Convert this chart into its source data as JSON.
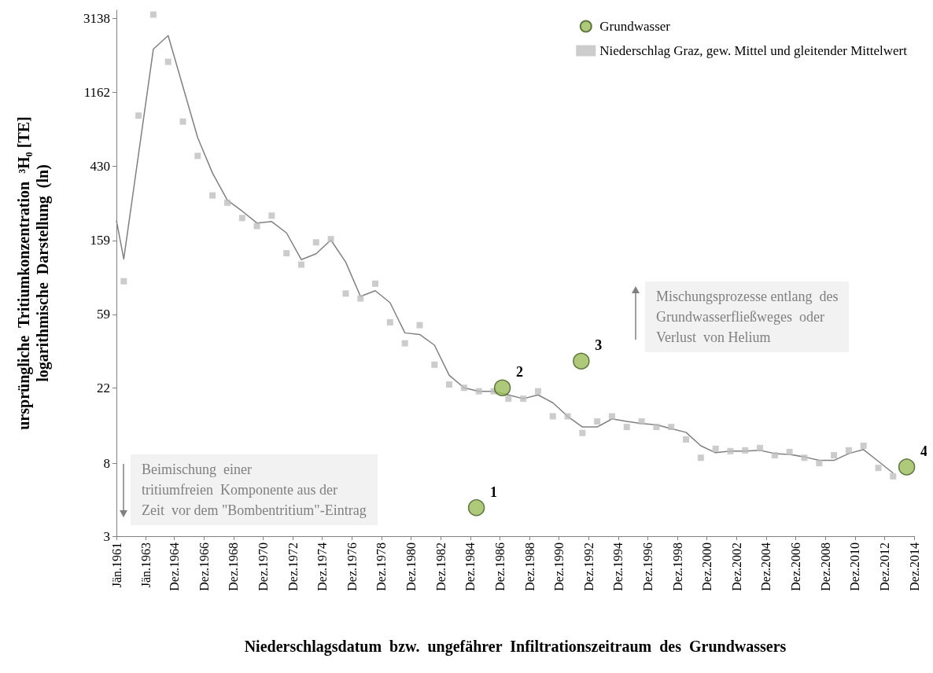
{
  "chart_data": {
    "type": "scatter",
    "xlabel": "Niederschlagsdatum  bzw.  ungefährer  Infiltrationszeitraum  des  Grundwassers",
    "ylabel": "ursprüngliche  Tritiumkonzentration  ³H₀ [TE]\nlogarithmische  Darstellung  (ln)",
    "log": "y",
    "grid": false,
    "legend": "top right",
    "xlim": [
      "1961-01-01",
      "2014-12-01"
    ],
    "xticks": [
      {
        "value": "1961-01-01",
        "label": "Jän.1961"
      },
      {
        "value": "1963-01-01",
        "label": "Jän.1963"
      },
      {
        "value": "1964-12-01",
        "label": "Dez.1964"
      },
      {
        "value": "1966-12-01",
        "label": "Dez.1966"
      },
      {
        "value": "1968-12-01",
        "label": "Dez.1968"
      },
      {
        "value": "1970-12-01",
        "label": "Dez.1970"
      },
      {
        "value": "1972-12-01",
        "label": "Dez.1972"
      },
      {
        "value": "1974-12-01",
        "label": "Dez.1974"
      },
      {
        "value": "1976-12-01",
        "label": "Dez.1976"
      },
      {
        "value": "1978-12-01",
        "label": "Dez.1978"
      },
      {
        "value": "1980-12-01",
        "label": "Dez.1980"
      },
      {
        "value": "1982-12-01",
        "label": "Dez.1982"
      },
      {
        "value": "1984-12-01",
        "label": "Dez.1984"
      },
      {
        "value": "1986-12-01",
        "label": "Dez.1986"
      },
      {
        "value": "1988-12-01",
        "label": "Dez.1988"
      },
      {
        "value": "1990-12-01",
        "label": "Dez.1990"
      },
      {
        "value": "1992-12-01",
        "label": "Dez.1992"
      },
      {
        "value": "1994-12-01",
        "label": "Dez.1994"
      },
      {
        "value": "1996-12-01",
        "label": "Dez.1996"
      },
      {
        "value": "1998-12-01",
        "label": "Dez.1998"
      },
      {
        "value": "2000-12-01",
        "label": "Dez.2000"
      },
      {
        "value": "2002-12-01",
        "label": "Dez.2002"
      },
      {
        "value": "2004-12-01",
        "label": "Dez.2004"
      },
      {
        "value": "2006-12-01",
        "label": "Dez.2006"
      },
      {
        "value": "2008-12-01",
        "label": "Dez.2008"
      },
      {
        "value": "2010-12-01",
        "label": "Dez.2010"
      },
      {
        "value": "2012-12-01",
        "label": "Dez.2012"
      },
      {
        "value": "2014-12-01",
        "label": "Dez.2014"
      }
    ],
    "ylim": [
      3,
      3500
    ],
    "yticks": [
      3,
      8,
      22,
      59,
      159,
      430,
      1162,
      3138
    ],
    "series": [
      {
        "type": "line",
        "marker": "none",
        "line_style": "solid",
        "color": "#808080",
        "x": [
          "1961-01",
          "1961-07",
          "1962-07",
          "1963-07",
          "1964-07",
          "1965-07",
          "1966-07",
          "1967-07",
          "1968-07",
          "1969-07",
          "1970-07",
          "1971-07",
          "1972-07",
          "1973-07",
          "1974-07",
          "1975-07",
          "1976-07",
          "1977-07",
          "1978-07",
          "1979-07",
          "1980-07",
          "1981-07",
          "1982-07",
          "1983-07",
          "1984-07",
          "1985-07",
          "1986-07",
          "1987-07",
          "1988-07",
          "1989-07",
          "1990-07",
          "1991-07",
          "1992-07",
          "1993-07",
          "1994-07",
          "1995-07",
          "1996-07",
          "1997-07",
          "1998-07",
          "1999-07",
          "2000-07",
          "2001-07",
          "2002-07",
          "2003-07",
          "2004-07",
          "2005-07",
          "2006-07",
          "2007-07",
          "2008-07",
          "2009-07",
          "2010-07",
          "2011-07",
          "2012-07",
          "2013-07"
        ],
        "values": [
          208,
          124,
          506,
          2075,
          2490,
          1253,
          631,
          393,
          273,
          236,
          201,
          205,
          176,
          123,
          133,
          160,
          119,
          75,
          81,
          69,
          46,
          45,
          39,
          26,
          22,
          21,
          21,
          20,
          19,
          20,
          18,
          15,
          13,
          13,
          14.5,
          14,
          13.6,
          13.4,
          12.7,
          12.1,
          10.1,
          9.2,
          9.4,
          9.4,
          9.5,
          9.1,
          9,
          8.7,
          8.3,
          8.3,
          9.1,
          9.6,
          8.2,
          7
        ]
      },
      {
        "name": "Niederschlag Graz, gew. Mittel und gleitender Mittelwert",
        "marker": "square",
        "color": "#bfbfbf",
        "x": [
          "1961-07",
          "1962-07",
          "1963-07",
          "1964-07",
          "1965-07",
          "1966-07",
          "1967-07",
          "1968-07",
          "1969-07",
          "1970-07",
          "1971-07",
          "1972-07",
          "1973-07",
          "1974-07",
          "1975-07",
          "1976-07",
          "1977-07",
          "1978-07",
          "1979-07",
          "1980-07",
          "1981-07",
          "1982-07",
          "1983-07",
          "1984-07",
          "1985-07",
          "1986-07",
          "1987-07",
          "1988-07",
          "1989-07",
          "1990-07",
          "1991-07",
          "1992-07",
          "1993-07",
          "1994-07",
          "1995-07",
          "1996-07",
          "1997-07",
          "1998-07",
          "1999-07",
          "2000-07",
          "2001-07",
          "2002-07",
          "2003-07",
          "2004-07",
          "2005-07",
          "2006-07",
          "2007-07",
          "2008-07",
          "2009-07",
          "2010-07",
          "2011-07",
          "2012-07",
          "2013-07"
        ],
        "values": [
          92,
          850,
          3300,
          1751,
          785,
          495,
          291,
          264,
          215,
          193,
          222,
          134,
          115,
          155,
          162,
          78,
          73,
          89,
          53,
          40,
          51,
          30,
          23,
          22,
          21,
          21,
          19,
          19,
          21,
          15,
          15,
          12,
          14,
          15,
          13,
          14,
          13,
          13,
          11,
          8.6,
          9.7,
          9.4,
          9.5,
          9.8,
          8.9,
          9.3,
          8.6,
          8,
          8.9,
          9.5,
          10.1,
          7.5,
          6.7
        ]
      },
      {
        "name": "Grundwasser",
        "marker": "circle",
        "color": "#9bbb59",
        "x": [
          "1985-05",
          "1987-02",
          "1992-06",
          "2014-06"
        ],
        "values": [
          4.4,
          22,
          31.5,
          7.6
        ]
      }
    ],
    "annotations": [
      "Beimischung  einer\ntritiumfreien  Komponente aus der\nZeit  vor dem \"Bombentritium\"-Eintrag",
      "Mischungsprozesse entlang  des\nGrundwasserfließweges  oder\nVerlust  von Helium",
      {
        "text": "1",
        "x": "1985-05",
        "y": 4.4
      },
      {
        "text": "2",
        "x": "1987-02",
        "y": 22
      },
      {
        "text": "3",
        "x": "1992-06",
        "y": 31.5
      },
      {
        "text": "4",
        "x": "2014-06",
        "y": 7.6
      }
    ]
  }
}
